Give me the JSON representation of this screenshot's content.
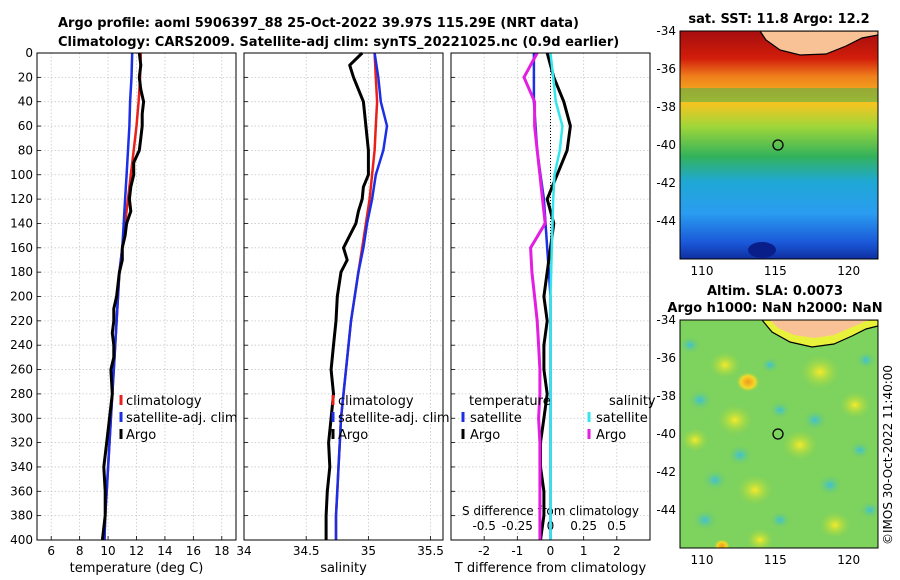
{
  "titles": {
    "line1": "Argo profile: aoml 5906397_88 25-Oct-2022 39.97S 115.29E (NRT data)",
    "line2": "Climatology: CARS2009. Satellite-adj clim: synTS_20221025.nc (0.9d earlier)",
    "sst": "sat. SST: 11.8 Argo: 12.2",
    "sla1": "Altim. SLA: 0.0073",
    "sla2": "Argo h1000: NaN h2000: NaN",
    "credit": "©IMOS 30-Oct-2022 11:40:00"
  },
  "colors": {
    "clim": "#e8201a",
    "sat": "#1a2fe6",
    "argo": "#000000",
    "argo_s": "#e21ee2",
    "sat_s": "#33e6ee"
  },
  "chart_data": [
    {
      "type": "line",
      "name": "temperature",
      "xlabel": "temperature (deg C)",
      "ylabel": "depth",
      "xlim": [
        5,
        19
      ],
      "ylim": [
        400,
        0
      ],
      "xticks": [
        "6",
        "8",
        "10",
        "12",
        "14",
        "16",
        "18"
      ],
      "yticks": [
        "0",
        "20",
        "40",
        "60",
        "80",
        "100",
        "120",
        "140",
        "160",
        "180",
        "200",
        "220",
        "240",
        "260",
        "280",
        "300",
        "320",
        "340",
        "360",
        "380",
        "400"
      ],
      "legend": [
        "climatology",
        "satellite-adj. clim",
        "Argo"
      ],
      "series": [
        {
          "name": "climatology",
          "color": "clim",
          "depth": [
            0,
            20,
            40,
            60,
            80,
            100,
            120,
            140,
            160,
            180,
            200,
            220,
            240,
            260,
            280,
            300,
            320,
            340,
            360,
            380,
            400
          ],
          "values": [
            12.3,
            12.25,
            12.15,
            12.0,
            11.8,
            11.6,
            11.4,
            11.2,
            11.0,
            10.8,
            10.7,
            10.6,
            10.5,
            10.4,
            10.3,
            10.2,
            10.1,
            10.0,
            9.9,
            9.8,
            9.75
          ]
        },
        {
          "name": "satellite-adj. clim",
          "color": "sat",
          "depth": [
            0,
            20,
            40,
            60,
            80,
            100,
            120,
            140,
            160,
            180,
            200,
            220,
            240,
            260,
            280,
            300,
            320,
            340,
            360,
            380,
            400
          ],
          "values": [
            11.7,
            11.65,
            11.55,
            11.5,
            11.4,
            11.3,
            11.2,
            11.1,
            11.0,
            10.8,
            10.7,
            10.6,
            10.5,
            10.4,
            10.3,
            10.2,
            10.1,
            10.0,
            9.9,
            9.8,
            9.75
          ]
        },
        {
          "name": "Argo",
          "color": "argo",
          "depth": [
            0,
            10,
            20,
            30,
            40,
            50,
            60,
            70,
            80,
            90,
            100,
            110,
            120,
            130,
            140,
            150,
            160,
            170,
            180,
            190,
            200,
            210,
            220,
            230,
            240,
            250,
            260,
            280,
            300,
            320,
            340,
            360,
            380,
            400
          ],
          "values": [
            12.2,
            12.3,
            12.2,
            12.3,
            12.5,
            12.4,
            12.4,
            12.3,
            12.2,
            11.8,
            11.8,
            11.6,
            11.5,
            11.6,
            11.3,
            11.2,
            11.0,
            11.0,
            10.8,
            10.7,
            10.6,
            10.4,
            10.4,
            10.3,
            10.4,
            10.4,
            10.2,
            10.3,
            10.1,
            9.9,
            9.7,
            9.8,
            9.8,
            9.6
          ]
        }
      ]
    },
    {
      "type": "line",
      "name": "salinity",
      "xlabel": "salinity",
      "xlim": [
        34,
        35.6
      ],
      "ylim": [
        400,
        0
      ],
      "xticks": [
        "34",
        "34.5",
        "35",
        "35.5"
      ],
      "legend": [
        "climatology",
        "satellite-adj. clim",
        "Argo"
      ],
      "series": [
        {
          "name": "climatology",
          "color": "clim",
          "depth": [
            0,
            20,
            40,
            60,
            80,
            100,
            120,
            140,
            160,
            180,
            200,
            220,
            240,
            260,
            280,
            300,
            320,
            340,
            360,
            380,
            400
          ],
          "values": [
            35.05,
            35.06,
            35.07,
            35.06,
            35.05,
            35.03,
            35.01,
            34.98,
            34.95,
            34.92,
            34.89,
            34.86,
            34.84,
            34.82,
            34.8,
            34.78,
            34.77,
            34.76,
            34.75,
            34.74,
            34.74
          ]
        },
        {
          "name": "satellite-adj. clim",
          "color": "sat",
          "depth": [
            0,
            20,
            40,
            60,
            80,
            100,
            120,
            140,
            160,
            180,
            200,
            220,
            240,
            260,
            280,
            300,
            320,
            340,
            360,
            380,
            400
          ],
          "values": [
            35.05,
            35.08,
            35.1,
            35.15,
            35.12,
            35.06,
            35.03,
            34.99,
            34.96,
            34.92,
            34.89,
            34.86,
            34.84,
            34.82,
            34.8,
            34.78,
            34.77,
            34.76,
            34.75,
            34.74,
            34.74
          ]
        },
        {
          "name": "Argo",
          "color": "argo",
          "depth": [
            0,
            10,
            20,
            40,
            60,
            80,
            100,
            110,
            120,
            130,
            140,
            150,
            160,
            170,
            180,
            200,
            220,
            240,
            260,
            280,
            300,
            320,
            340,
            360,
            380,
            400
          ],
          "values": [
            34.95,
            34.85,
            34.88,
            34.96,
            34.98,
            35.0,
            35.0,
            34.96,
            34.95,
            34.92,
            34.9,
            34.85,
            34.8,
            34.83,
            34.78,
            34.75,
            34.74,
            34.72,
            34.7,
            34.72,
            34.7,
            34.68,
            34.69,
            34.67,
            34.66,
            34.66
          ]
        }
      ]
    },
    {
      "type": "line",
      "name": "difference",
      "xlabel": "T difference from climatology",
      "x2label": "S difference from climatology",
      "xlim": [
        -3,
        3
      ],
      "x2lim": [
        -0.75,
        0.75
      ],
      "ylim": [
        400,
        0
      ],
      "xticks": [
        "-2",
        "-1",
        "0",
        "1",
        "2"
      ],
      "x2ticks": [
        "-0.5",
        "-0.25",
        "0",
        "0.25",
        "0.5"
      ],
      "legend_temperature": "temperature",
      "legend_salinity": "salinity",
      "legend": [
        "satellite",
        "Argo",
        "satellite",
        "Argo"
      ],
      "series": [
        {
          "name": "temperature satellite",
          "color": "sat",
          "axis": "T",
          "depth": [
            0,
            40,
            80,
            100,
            120,
            160,
            200,
            240,
            280,
            320,
            360,
            400
          ],
          "values": [
            -0.5,
            -0.5,
            -0.4,
            -0.3,
            -0.2,
            -0.1,
            0,
            0,
            0,
            0,
            0,
            0
          ]
        },
        {
          "name": "temperature Argo",
          "color": "argo",
          "axis": "T",
          "depth": [
            0,
            20,
            40,
            60,
            80,
            100,
            120,
            140,
            160,
            180,
            200,
            220,
            240,
            260,
            280,
            300,
            320,
            340,
            360,
            380,
            400
          ],
          "values": [
            -0.1,
            0.1,
            0.4,
            0.6,
            0.5,
            0.2,
            -0.1,
            0.1,
            0,
            -0.1,
            -0.2,
            -0.1,
            -0.2,
            -0.2,
            -0.1,
            -0.2,
            -0.3,
            -0.3,
            -0.2,
            -0.2,
            -0.3
          ]
        },
        {
          "name": "salinity satellite",
          "color": "sat_s",
          "axis": "S",
          "depth": [
            0,
            20,
            40,
            60,
            80,
            100,
            120,
            160,
            200,
            240,
            280,
            320,
            360,
            400
          ],
          "values": [
            0.0,
            0.02,
            0.04,
            0.09,
            0.07,
            0.03,
            0.02,
            0.01,
            0.0,
            0.0,
            0.0,
            0.0,
            0.0,
            0.0
          ]
        },
        {
          "name": "salinity Argo",
          "color": "argo_s",
          "axis": "S",
          "depth": [
            0,
            20,
            40,
            60,
            80,
            100,
            120,
            140,
            160,
            180,
            200,
            220,
            240,
            260,
            280,
            300,
            320,
            340,
            360,
            380,
            400
          ],
          "values": [
            -0.1,
            -0.2,
            -0.12,
            -0.12,
            -0.1,
            -0.08,
            -0.06,
            -0.04,
            -0.15,
            -0.14,
            -0.12,
            -0.1,
            -0.09,
            -0.08,
            -0.08,
            -0.09,
            -0.08,
            -0.08,
            -0.08,
            -0.08,
            -0.08
          ]
        }
      ]
    },
    {
      "type": "heatmap",
      "name": "sat-sst-map",
      "xticks": [
        "110",
        "115",
        "120"
      ],
      "yticks": [
        "-34",
        "-36",
        "-38",
        "-40",
        "-42",
        "-44"
      ],
      "xlim": [
        108.5,
        122
      ],
      "ylim": [
        -46,
        -34
      ],
      "marker": {
        "lon": 115.29,
        "lat": -39.97
      }
    },
    {
      "type": "heatmap",
      "name": "altim-sla-map",
      "xticks": [
        "110",
        "115",
        "120"
      ],
      "yticks": [
        "-34",
        "-36",
        "-38",
        "-40",
        "-42",
        "-44"
      ],
      "xlim": [
        108.5,
        122
      ],
      "ylim": [
        -46,
        -34
      ],
      "marker": {
        "lon": 115.29,
        "lat": -39.97
      }
    }
  ]
}
